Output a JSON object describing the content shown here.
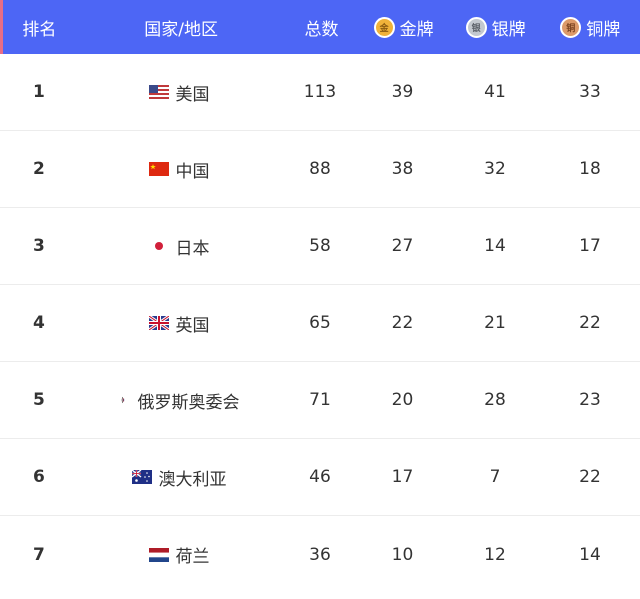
{
  "header": {
    "rank": "排名",
    "country": "国家/地区",
    "total": "总数",
    "gold": "金牌",
    "silver": "银牌",
    "bronze": "铜牌"
  },
  "colors": {
    "header_bg": "#4d66f5",
    "gold": "#f0b23a",
    "silver": "#c3c8cf",
    "bronze": "#dc9a6a"
  },
  "rows": [
    {
      "rank": "1",
      "country": "美国",
      "flag": "flag-usa-icon",
      "total": "113",
      "gold": "39",
      "silver": "41",
      "bronze": "33"
    },
    {
      "rank": "2",
      "country": "中国",
      "flag": "flag-china-icon",
      "total": "88",
      "gold": "38",
      "silver": "32",
      "bronze": "18"
    },
    {
      "rank": "3",
      "country": "日本",
      "flag": "flag-japan-icon",
      "total": "58",
      "gold": "27",
      "silver": "14",
      "bronze": "17"
    },
    {
      "rank": "4",
      "country": "英国",
      "flag": "flag-uk-icon",
      "total": "65",
      "gold": "22",
      "silver": "21",
      "bronze": "22"
    },
    {
      "rank": "5",
      "country": "俄罗斯奥委会",
      "flag": "roc-emblem-icon",
      "total": "71",
      "gold": "20",
      "silver": "28",
      "bronze": "23"
    },
    {
      "rank": "6",
      "country": "澳大利亚",
      "flag": "flag-australia-icon",
      "total": "46",
      "gold": "17",
      "silver": "7",
      "bronze": "22"
    },
    {
      "rank": "7",
      "country": "荷兰",
      "flag": "flag-netherlands-icon",
      "total": "36",
      "gold": "10",
      "silver": "12",
      "bronze": "14"
    }
  ]
}
